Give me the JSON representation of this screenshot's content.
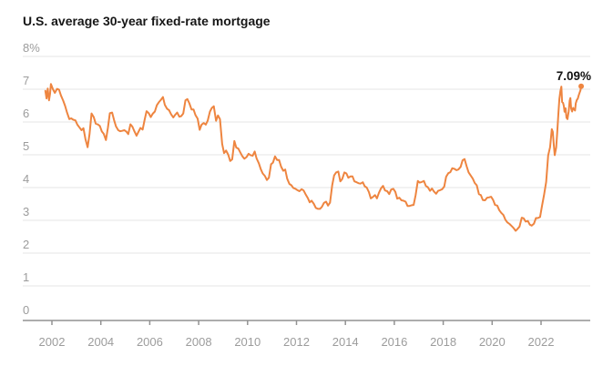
{
  "chart": {
    "title": "U.S. average 30-year fixed-rate mortgage",
    "end_label": "7.09%"
  },
  "chart_data": {
    "type": "line",
    "title": "U.S. average 30-year fixed-rate mortgage",
    "xlabel": "",
    "ylabel": "percent",
    "xlim": [
      2001.7,
      2023.95
    ],
    "ylim": [
      0,
      8
    ],
    "grid": true,
    "legend_position": "none",
    "line_color": "#ee8540",
    "grid_color": "#e4e4e4",
    "axis_color": "#929292",
    "label_color": "#9c9c9c",
    "x_ticks": [
      2002,
      2004,
      2006,
      2008,
      2010,
      2012,
      2014,
      2016,
      2018,
      2020,
      2022
    ],
    "x_tick_labels": [
      "2002",
      "2004",
      "2006",
      "2008",
      "2010",
      "2012",
      "2014",
      "2016",
      "2018",
      "2020",
      "2022"
    ],
    "y_ticks": [
      0,
      1,
      2,
      3,
      4,
      5,
      6,
      7,
      8
    ],
    "y_tick_labels": [
      "0",
      "1",
      "2",
      "3",
      "4",
      "5",
      "6",
      "7",
      "8%"
    ],
    "annotation": {
      "text": "7.09%",
      "x": 2023.64,
      "y": 7.09
    },
    "series": [
      {
        "name": "U.S. average 30-year fixed-rate mortgage (%)",
        "points": [
          [
            2001.73,
            6.95
          ],
          [
            2001.78,
            6.72
          ],
          [
            2001.83,
            7.02
          ],
          [
            2001.88,
            6.66
          ],
          [
            2001.92,
            6.85
          ],
          [
            2001.96,
            7.16
          ],
          [
            2002.04,
            7.0
          ],
          [
            2002.12,
            6.89
          ],
          [
            2002.21,
            7.01
          ],
          [
            2002.29,
            6.99
          ],
          [
            2002.37,
            6.81
          ],
          [
            2002.46,
            6.65
          ],
          [
            2002.54,
            6.49
          ],
          [
            2002.62,
            6.29
          ],
          [
            2002.71,
            6.09
          ],
          [
            2002.79,
            6.11
          ],
          [
            2002.87,
            6.07
          ],
          [
            2002.96,
            6.05
          ],
          [
            2003.04,
            5.92
          ],
          [
            2003.12,
            5.84
          ],
          [
            2003.21,
            5.75
          ],
          [
            2003.29,
            5.81
          ],
          [
            2003.37,
            5.48
          ],
          [
            2003.46,
            5.23
          ],
          [
            2003.54,
            5.63
          ],
          [
            2003.62,
            6.26
          ],
          [
            2003.71,
            6.15
          ],
          [
            2003.79,
            5.95
          ],
          [
            2003.87,
            5.93
          ],
          [
            2003.96,
            5.88
          ],
          [
            2004.04,
            5.71
          ],
          [
            2004.12,
            5.64
          ],
          [
            2004.21,
            5.45
          ],
          [
            2004.29,
            5.83
          ],
          [
            2004.37,
            6.27
          ],
          [
            2004.46,
            6.29
          ],
          [
            2004.54,
            6.06
          ],
          [
            2004.62,
            5.87
          ],
          [
            2004.71,
            5.75
          ],
          [
            2004.79,
            5.72
          ],
          [
            2004.87,
            5.73
          ],
          [
            2004.96,
            5.75
          ],
          [
            2005.04,
            5.71
          ],
          [
            2005.12,
            5.63
          ],
          [
            2005.21,
            5.93
          ],
          [
            2005.29,
            5.86
          ],
          [
            2005.37,
            5.72
          ],
          [
            2005.46,
            5.58
          ],
          [
            2005.54,
            5.7
          ],
          [
            2005.62,
            5.82
          ],
          [
            2005.71,
            5.77
          ],
          [
            2005.79,
            6.07
          ],
          [
            2005.87,
            6.33
          ],
          [
            2005.96,
            6.27
          ],
          [
            2006.04,
            6.15
          ],
          [
            2006.12,
            6.25
          ],
          [
            2006.21,
            6.32
          ],
          [
            2006.29,
            6.51
          ],
          [
            2006.37,
            6.6
          ],
          [
            2006.46,
            6.68
          ],
          [
            2006.54,
            6.76
          ],
          [
            2006.62,
            6.52
          ],
          [
            2006.71,
            6.4
          ],
          [
            2006.79,
            6.36
          ],
          [
            2006.87,
            6.24
          ],
          [
            2006.96,
            6.14
          ],
          [
            2007.04,
            6.22
          ],
          [
            2007.12,
            6.29
          ],
          [
            2007.21,
            6.16
          ],
          [
            2007.29,
            6.18
          ],
          [
            2007.37,
            6.26
          ],
          [
            2007.46,
            6.66
          ],
          [
            2007.54,
            6.7
          ],
          [
            2007.62,
            6.57
          ],
          [
            2007.71,
            6.38
          ],
          [
            2007.79,
            6.38
          ],
          [
            2007.87,
            6.21
          ],
          [
            2007.96,
            6.1
          ],
          [
            2008.04,
            5.76
          ],
          [
            2008.12,
            5.92
          ],
          [
            2008.21,
            5.97
          ],
          [
            2008.29,
            5.92
          ],
          [
            2008.37,
            6.04
          ],
          [
            2008.46,
            6.32
          ],
          [
            2008.54,
            6.43
          ],
          [
            2008.62,
            6.48
          ],
          [
            2008.71,
            6.04
          ],
          [
            2008.79,
            6.2
          ],
          [
            2008.87,
            6.09
          ],
          [
            2008.96,
            5.33
          ],
          [
            2009.04,
            5.05
          ],
          [
            2009.12,
            5.13
          ],
          [
            2009.21,
            5.0
          ],
          [
            2009.29,
            4.81
          ],
          [
            2009.37,
            4.86
          ],
          [
            2009.46,
            5.42
          ],
          [
            2009.54,
            5.22
          ],
          [
            2009.62,
            5.19
          ],
          [
            2009.71,
            5.06
          ],
          [
            2009.79,
            4.95
          ],
          [
            2009.87,
            4.88
          ],
          [
            2009.96,
            4.93
          ],
          [
            2010.04,
            5.03
          ],
          [
            2010.12,
            4.99
          ],
          [
            2010.21,
            4.97
          ],
          [
            2010.29,
            5.1
          ],
          [
            2010.37,
            4.89
          ],
          [
            2010.46,
            4.74
          ],
          [
            2010.54,
            4.56
          ],
          [
            2010.62,
            4.43
          ],
          [
            2010.71,
            4.35
          ],
          [
            2010.79,
            4.23
          ],
          [
            2010.87,
            4.3
          ],
          [
            2010.96,
            4.71
          ],
          [
            2011.04,
            4.76
          ],
          [
            2011.12,
            4.95
          ],
          [
            2011.21,
            4.84
          ],
          [
            2011.29,
            4.84
          ],
          [
            2011.37,
            4.64
          ],
          [
            2011.46,
            4.51
          ],
          [
            2011.54,
            4.55
          ],
          [
            2011.62,
            4.27
          ],
          [
            2011.71,
            4.11
          ],
          [
            2011.79,
            4.07
          ],
          [
            2011.87,
            3.99
          ],
          [
            2011.96,
            3.96
          ],
          [
            2012.04,
            3.92
          ],
          [
            2012.12,
            3.89
          ],
          [
            2012.21,
            3.95
          ],
          [
            2012.29,
            3.91
          ],
          [
            2012.37,
            3.8
          ],
          [
            2012.46,
            3.68
          ],
          [
            2012.54,
            3.55
          ],
          [
            2012.62,
            3.6
          ],
          [
            2012.71,
            3.5
          ],
          [
            2012.79,
            3.38
          ],
          [
            2012.87,
            3.35
          ],
          [
            2012.96,
            3.35
          ],
          [
            2013.04,
            3.41
          ],
          [
            2013.12,
            3.53
          ],
          [
            2013.21,
            3.57
          ],
          [
            2013.29,
            3.45
          ],
          [
            2013.37,
            3.54
          ],
          [
            2013.46,
            4.07
          ],
          [
            2013.54,
            4.37
          ],
          [
            2013.62,
            4.46
          ],
          [
            2013.71,
            4.49
          ],
          [
            2013.79,
            4.19
          ],
          [
            2013.87,
            4.26
          ],
          [
            2013.96,
            4.46
          ],
          [
            2014.04,
            4.43
          ],
          [
            2014.12,
            4.3
          ],
          [
            2014.21,
            4.34
          ],
          [
            2014.29,
            4.34
          ],
          [
            2014.37,
            4.19
          ],
          [
            2014.46,
            4.16
          ],
          [
            2014.54,
            4.13
          ],
          [
            2014.62,
            4.12
          ],
          [
            2014.71,
            4.16
          ],
          [
            2014.79,
            4.04
          ],
          [
            2014.87,
            4.0
          ],
          [
            2014.96,
            3.86
          ],
          [
            2015.04,
            3.67
          ],
          [
            2015.12,
            3.71
          ],
          [
            2015.21,
            3.77
          ],
          [
            2015.29,
            3.67
          ],
          [
            2015.37,
            3.84
          ],
          [
            2015.46,
            3.98
          ],
          [
            2015.54,
            4.05
          ],
          [
            2015.62,
            3.91
          ],
          [
            2015.71,
            3.89
          ],
          [
            2015.79,
            3.8
          ],
          [
            2015.87,
            3.94
          ],
          [
            2015.96,
            3.96
          ],
          [
            2016.04,
            3.87
          ],
          [
            2016.12,
            3.66
          ],
          [
            2016.21,
            3.69
          ],
          [
            2016.29,
            3.61
          ],
          [
            2016.37,
            3.6
          ],
          [
            2016.46,
            3.57
          ],
          [
            2016.54,
            3.44
          ],
          [
            2016.62,
            3.44
          ],
          [
            2016.71,
            3.46
          ],
          [
            2016.79,
            3.47
          ],
          [
            2016.87,
            3.77
          ],
          [
            2016.96,
            4.2
          ],
          [
            2017.04,
            4.15
          ],
          [
            2017.12,
            4.17
          ],
          [
            2017.21,
            4.2
          ],
          [
            2017.29,
            4.05
          ],
          [
            2017.37,
            4.01
          ],
          [
            2017.46,
            3.9
          ],
          [
            2017.54,
            3.97
          ],
          [
            2017.62,
            3.88
          ],
          [
            2017.71,
            3.81
          ],
          [
            2017.79,
            3.9
          ],
          [
            2017.87,
            3.92
          ],
          [
            2017.96,
            3.95
          ],
          [
            2018.04,
            4.03
          ],
          [
            2018.12,
            4.33
          ],
          [
            2018.21,
            4.44
          ],
          [
            2018.29,
            4.47
          ],
          [
            2018.37,
            4.59
          ],
          [
            2018.46,
            4.57
          ],
          [
            2018.54,
            4.53
          ],
          [
            2018.62,
            4.55
          ],
          [
            2018.71,
            4.63
          ],
          [
            2018.79,
            4.83
          ],
          [
            2018.87,
            4.87
          ],
          [
            2018.96,
            4.64
          ],
          [
            2019.04,
            4.46
          ],
          [
            2019.12,
            4.37
          ],
          [
            2019.21,
            4.27
          ],
          [
            2019.29,
            4.14
          ],
          [
            2019.37,
            4.07
          ],
          [
            2019.46,
            3.8
          ],
          [
            2019.54,
            3.77
          ],
          [
            2019.62,
            3.62
          ],
          [
            2019.71,
            3.61
          ],
          [
            2019.79,
            3.69
          ],
          [
            2019.87,
            3.7
          ],
          [
            2019.96,
            3.72
          ],
          [
            2020.04,
            3.62
          ],
          [
            2020.12,
            3.47
          ],
          [
            2020.21,
            3.45
          ],
          [
            2020.29,
            3.31
          ],
          [
            2020.37,
            3.23
          ],
          [
            2020.46,
            3.16
          ],
          [
            2020.54,
            3.02
          ],
          [
            2020.62,
            2.94
          ],
          [
            2020.71,
            2.89
          ],
          [
            2020.79,
            2.83
          ],
          [
            2020.87,
            2.77
          ],
          [
            2020.96,
            2.68
          ],
          [
            2021.04,
            2.74
          ],
          [
            2021.12,
            2.81
          ],
          [
            2021.21,
            3.08
          ],
          [
            2021.29,
            3.06
          ],
          [
            2021.37,
            2.96
          ],
          [
            2021.46,
            2.98
          ],
          [
            2021.54,
            2.87
          ],
          [
            2021.62,
            2.84
          ],
          [
            2021.71,
            2.9
          ],
          [
            2021.79,
            3.07
          ],
          [
            2021.87,
            3.07
          ],
          [
            2021.96,
            3.1
          ],
          [
            2022.04,
            3.45
          ],
          [
            2022.12,
            3.76
          ],
          [
            2022.21,
            4.17
          ],
          [
            2022.29,
            4.98
          ],
          [
            2022.37,
            5.23
          ],
          [
            2022.44,
            5.78
          ],
          [
            2022.48,
            5.7
          ],
          [
            2022.52,
            5.3
          ],
          [
            2022.56,
            4.99
          ],
          [
            2022.62,
            5.22
          ],
          [
            2022.66,
            5.66
          ],
          [
            2022.71,
            6.29
          ],
          [
            2022.75,
            6.7
          ],
          [
            2022.79,
            6.94
          ],
          [
            2022.83,
            7.08
          ],
          [
            2022.86,
            6.61
          ],
          [
            2022.9,
            6.58
          ],
          [
            2022.93,
            6.49
          ],
          [
            2022.96,
            6.31
          ],
          [
            2023.0,
            6.42
          ],
          [
            2023.04,
            6.13
          ],
          [
            2023.08,
            6.09
          ],
          [
            2023.13,
            6.32
          ],
          [
            2023.17,
            6.65
          ],
          [
            2023.2,
            6.73
          ],
          [
            2023.23,
            6.42
          ],
          [
            2023.27,
            6.32
          ],
          [
            2023.31,
            6.43
          ],
          [
            2023.35,
            6.39
          ],
          [
            2023.39,
            6.35
          ],
          [
            2023.42,
            6.57
          ],
          [
            2023.46,
            6.67
          ],
          [
            2023.5,
            6.71
          ],
          [
            2023.54,
            6.81
          ],
          [
            2023.58,
            6.9
          ],
          [
            2023.61,
            6.96
          ],
          [
            2023.64,
            7.09
          ]
        ]
      }
    ]
  }
}
